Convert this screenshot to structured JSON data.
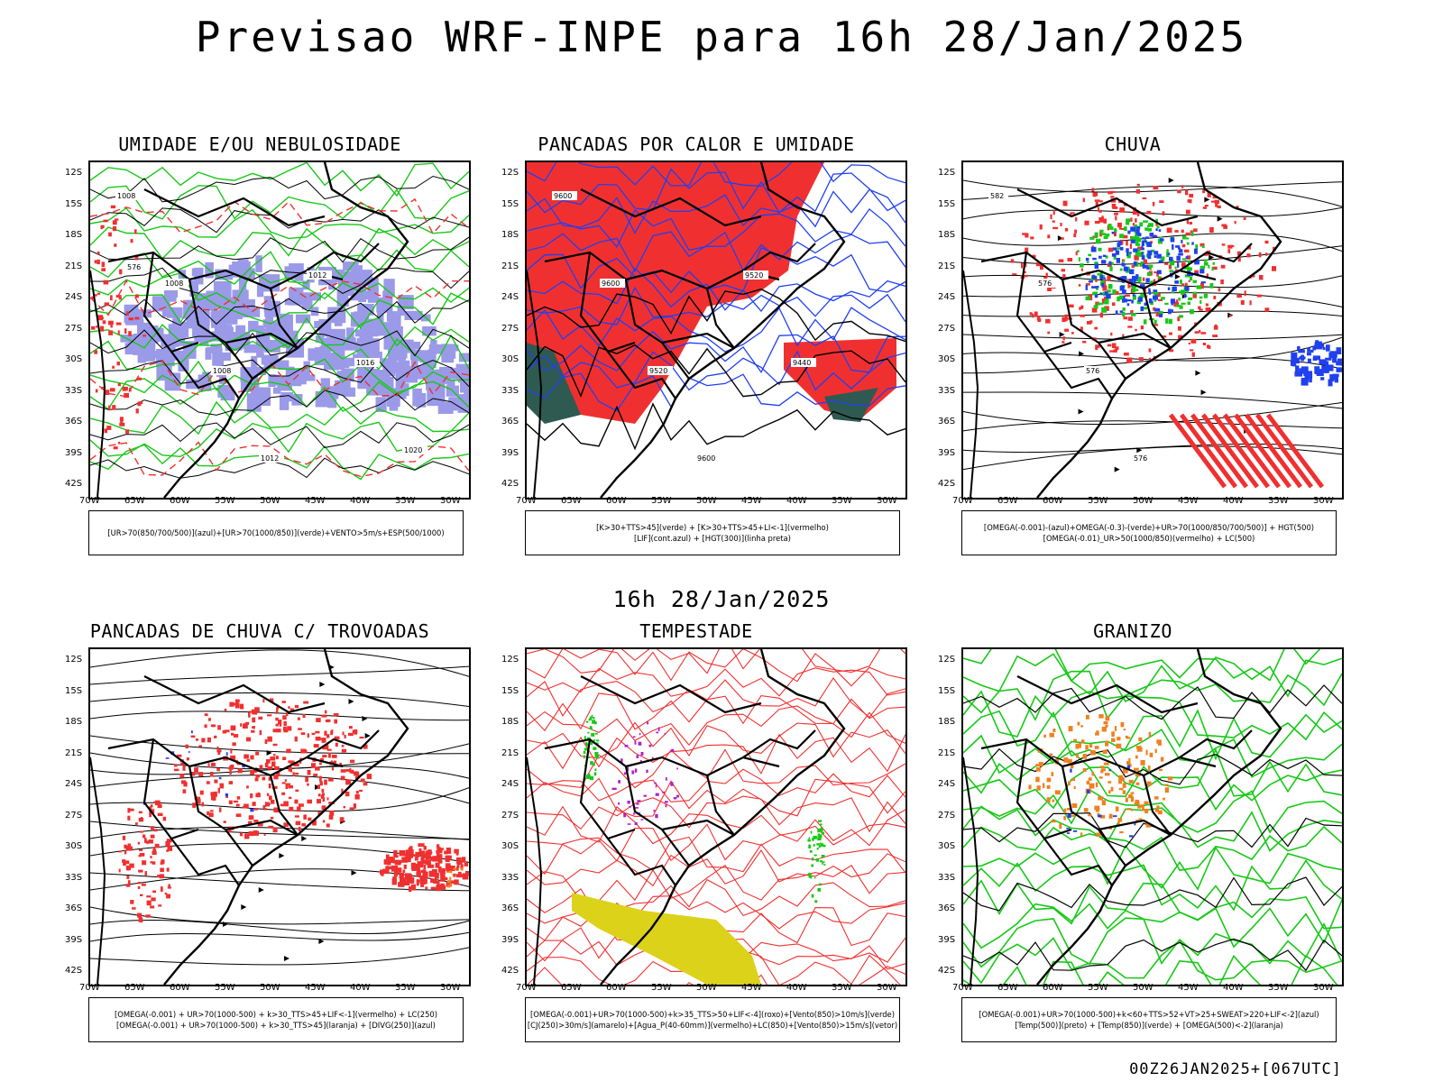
{
  "title": "Previsao WRF-INPE  para 16h 28/Jan/2025",
  "subtitle": "16h 28/Jan/2025",
  "footer": "00Z26JAN2025+[067UTC]",
  "axis": {
    "lat_labels": [
      "12S",
      "15S",
      "18S",
      "21S",
      "24S",
      "27S",
      "30S",
      "33S",
      "36S",
      "39S",
      "42S"
    ],
    "lon_labels": [
      "70W",
      "65W",
      "60W",
      "55W",
      "50W",
      "45W",
      "40W",
      "35W",
      "30W"
    ]
  },
  "colors": {
    "red": "#f03030",
    "green": "#18c818",
    "blue": "#2040f0",
    "lavender": "#9a9ae8",
    "darkteal": "#2f5a52",
    "yellow": "#dcd21a",
    "orange": "#f08020",
    "purple": "#b020d0"
  },
  "panels": [
    {
      "title": "UMIDADE E/OU NEBULOSIDADE",
      "legend": [
        "[UR>70(850/700/500)](azul)+[UR>70(1000/850)](verde)+VENTO>5m/s+ESP(500/1000)"
      ],
      "contour_labels": [
        "1008",
        "1008",
        "1008",
        "1012",
        "1012",
        "1016",
        "1020",
        "576"
      ]
    },
    {
      "title": "PANCADAS POR CALOR E UMIDADE",
      "legend": [
        "[K>30+TTS>45](verde) + [K>30+TTS>45+LI<-1](vermelho)",
        "[LIF](cont.azul) + [HGT(300)](linha preta)"
      ],
      "contour_labels": [
        "9600",
        "9600",
        "9520",
        "9600",
        "9520",
        "9440"
      ]
    },
    {
      "title": "CHUVA",
      "legend": [
        "[OMEGA(-0.001)-(azul)+OMEGA(-0.3)-(verde)+UR>70(1000/850/700/500)] + HGT(500)",
        "[OMEGA(-0.01)_UR>50(1000/850)(vermelho) + LC(500)"
      ],
      "contour_labels": [
        "582",
        "576",
        "576",
        "576"
      ]
    },
    {
      "title": "PANCADAS DE CHUVA C/ TROVOADAS",
      "legend": [
        "[OMEGA(-0.001) + UR>70(1000-500) + k>30_TTS>45+LIF<-1](vermelho) + LC(250)",
        "[OMEGA(-0.001) + UR>70(1000-500) + k>30_TTS>45](laranja) + [DIVG(250)](azul)"
      ],
      "contour_labels": []
    },
    {
      "title": "TEMPESTADE",
      "legend": [
        "[OMEGA(-0.001)+UR>70(1000-500)+k>35_TTS>50+LIF<-4](roxo)+[Vento(850)>10m/s](verde)",
        "[CJ(250)>30m/s](amarelo)+[Agua_P(40-60mm)](vermelho)+LC(850)+[Vento(850)>15m/s](vetor)"
      ],
      "contour_labels": []
    },
    {
      "title": "GRANIZO",
      "legend": [
        "[OMEGA(-0.001)+UR>70(1000-500)+k<60+TTS>52+VT>25+SWEAT>220+LIF<-2](azul)",
        "[Temp(500)](preto) + [Temp(850)](verde) + [OMEGA(500)<-2](laranja)"
      ],
      "contour_labels": []
    }
  ]
}
